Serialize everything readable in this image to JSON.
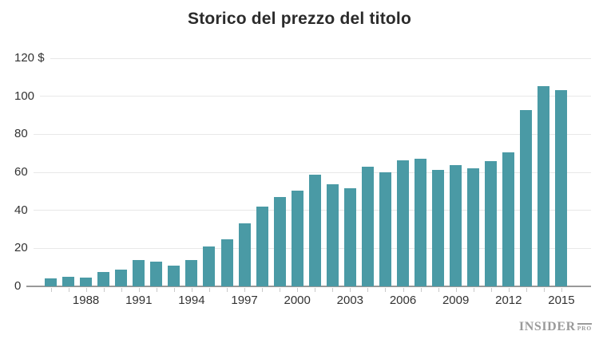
{
  "title": "Storico del prezzo del titolo",
  "logo": {
    "name": "INSIDER",
    "suffix": "PRO"
  },
  "colors": {
    "background": "#ffffff",
    "bar": "#4a9aa5",
    "gridline": "#e8e8e8",
    "axis_line": "#999999",
    "tick": "#c9c9c9",
    "axis_label": "#333333",
    "title": "#2b2b2b",
    "logo": "#9b9b9b"
  },
  "y_axis": {
    "tick_labels": [
      "120 $",
      "100",
      "80",
      "60",
      "40",
      "20",
      "0"
    ],
    "tick_values": [
      120,
      100,
      80,
      60,
      40,
      20,
      0
    ]
  },
  "x_axis": {
    "labeled_years": [
      1988,
      1991,
      1994,
      1997,
      2000,
      2003,
      2006,
      2009,
      2012,
      2015
    ]
  },
  "chart_data": {
    "type": "bar",
    "title": "Storico del prezzo del titolo",
    "xlabel": "",
    "ylabel": "$",
    "ylim": [
      0,
      120
    ],
    "grid": true,
    "legend": "none",
    "bar_color": "#4a9aa5",
    "x": [
      1986,
      1987,
      1988,
      1989,
      1990,
      1991,
      1992,
      1993,
      1994,
      1995,
      1996,
      1997,
      1998,
      1999,
      2000,
      2001,
      2002,
      2003,
      2004,
      2005,
      2006,
      2007,
      2008,
      2009,
      2010,
      2011,
      2012,
      2013,
      2014,
      2015
    ],
    "values": [
      4.2,
      5.0,
      4.8,
      7.5,
      9.0,
      14.0,
      12.9,
      10.8,
      13.9,
      21.0,
      24.9,
      33.0,
      42.0,
      47.1,
      50.5,
      58.8,
      53.8,
      51.8,
      62.9,
      60.1,
      66.3,
      67.0,
      61.1,
      63.9,
      62.2,
      65.7,
      70.5,
      92.8,
      105.3,
      103.2
    ]
  }
}
